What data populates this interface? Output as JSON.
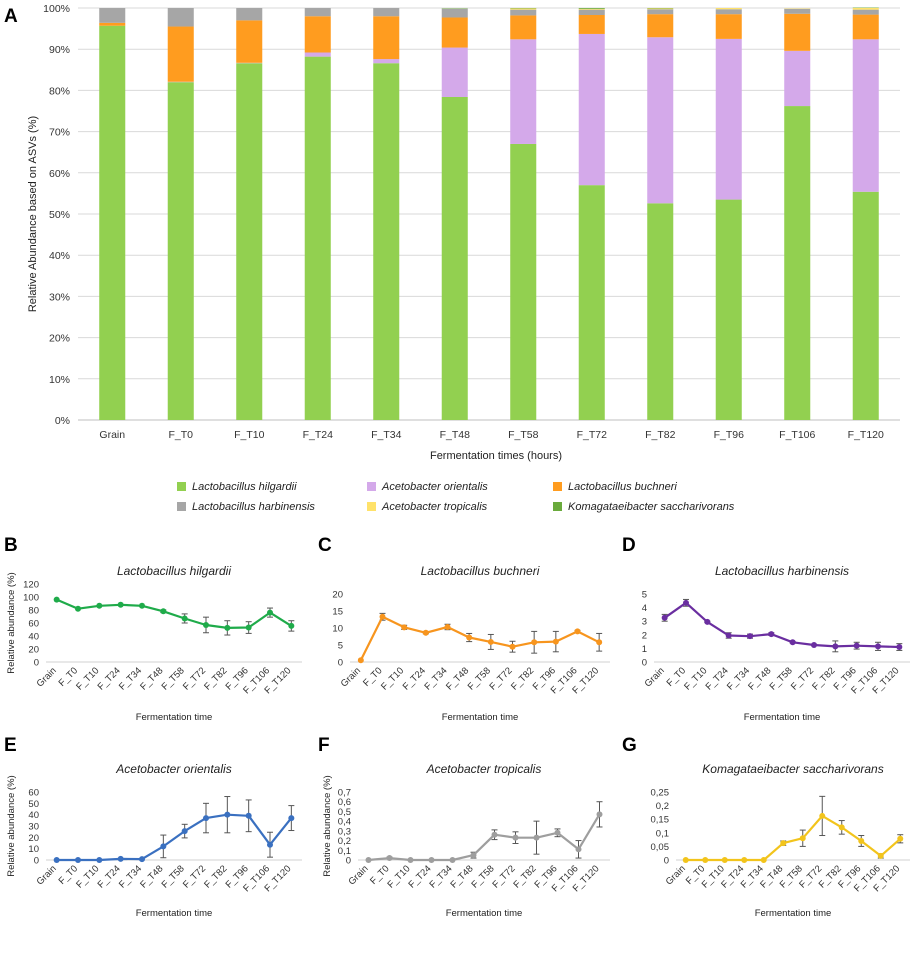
{
  "panels": {
    "A": "A",
    "B": "B",
    "C": "C",
    "D": "D",
    "E": "E",
    "F": "F",
    "G": "G"
  },
  "colors": {
    "hilgardii": "#92d050",
    "orientalis": "#d4a9ea",
    "buchneri": "#ff9c1f",
    "harbinensis": "#a6a6a6",
    "tropicalis": "#ffe26a",
    "komagataeibacter": "#6aaa3c"
  },
  "chart_data": [
    {
      "id": "A",
      "type": "bar",
      "stacked": true,
      "title": "",
      "xlabel": "Fermentation times (hours)",
      "ylabel": "Relative Abundance based on ASVs  (%)",
      "ylim": [
        0,
        100
      ],
      "yticks": [
        "0%",
        "10%",
        "20%",
        "30%",
        "40%",
        "50%",
        "60%",
        "70%",
        "80%",
        "90%",
        "100%"
      ],
      "categories": [
        "Grain",
        "F_T0",
        "F_T10",
        "F_T24",
        "F_T34",
        "F_T48",
        "F_T58",
        "F_T72",
        "F_T82",
        "F_T96",
        "F_T106",
        "F_T120"
      ],
      "series": [
        {
          "name": "Lactobacillus hilgardii",
          "key": "hilgardii",
          "values": [
            95.7,
            82,
            86.6,
            88.2,
            86.6,
            78.4,
            67,
            57,
            52.6,
            53.5,
            76.2,
            55.4
          ]
        },
        {
          "name": "Acetobacter orientalis",
          "key": "orientalis",
          "values": [
            0,
            0.1,
            0.1,
            1,
            1,
            12,
            25.4,
            36.7,
            40.3,
            39,
            13.4,
            37
          ]
        },
        {
          "name": "Lactobacillus buchneri",
          "key": "buchneri",
          "values": [
            0.7,
            13.4,
            10.3,
            8.8,
            10.4,
            7.3,
            5.8,
            4.6,
            5.6,
            6,
            9,
            6
          ]
        },
        {
          "name": "Lactobacillus harbinensis",
          "key": "harbinensis",
          "values": [
            3.6,
            4.5,
            3,
            2,
            2,
            2.1,
            1.4,
            1.3,
            1.2,
            1.2,
            1.2,
            1.2
          ]
        },
        {
          "name": "Acetobacter tropicalis",
          "key": "tropicalis",
          "values": [
            0,
            0,
            0,
            0,
            0,
            0,
            0.3,
            0.2,
            0.2,
            0.3,
            0.1,
            0.4
          ]
        },
        {
          "name": "Komagataeibacter saccharivorans",
          "key": "komagataeibacter",
          "values": [
            0,
            0,
            0,
            0,
            0,
            0.1,
            0.1,
            0.2,
            0.1,
            0,
            0,
            0.1
          ]
        }
      ],
      "legend_position": "bottom"
    },
    {
      "id": "B",
      "type": "line",
      "title": "Lactobacillus hilgardii",
      "color": "#1fab4a",
      "ylabel": "Relative abundance (%)",
      "xlabel": "Fermentation time",
      "ylim": [
        0,
        120
      ],
      "yticks": [
        "0",
        "20",
        "40",
        "60",
        "80",
        "100",
        "120"
      ],
      "ytick_values": [
        0,
        20,
        40,
        60,
        80,
        100,
        120
      ],
      "categories": [
        "Grain",
        "F_T0",
        "F_T10",
        "F_T24",
        "F_T34",
        "F_T48",
        "F_T58",
        "F_T72",
        "F_T82",
        "F_T96",
        "F_T106",
        "F_T120"
      ],
      "values": [
        96,
        82,
        86.5,
        88,
        86.5,
        78,
        67,
        57,
        52.5,
        53,
        76,
        55.5
      ],
      "errors": [
        0,
        0,
        0,
        0,
        0,
        2,
        7,
        12,
        11,
        9,
        7,
        8
      ]
    },
    {
      "id": "C",
      "type": "line",
      "title": "Lactobacillus buchneri",
      "color": "#f7951e",
      "ylabel": "",
      "xlabel": "Fermentation time",
      "ylim": [
        0,
        20
      ],
      "yticks": [
        "0",
        "5",
        "10",
        "15",
        "20"
      ],
      "ytick_values": [
        0,
        5,
        10,
        15,
        20
      ],
      "categories": [
        "Grain",
        "F_T0",
        "F_T10",
        "F_T24",
        "F_T34",
        "F_T48",
        "F_T58",
        "F_T72",
        "F_T82",
        "F_T96",
        "F_T106",
        "F_T120"
      ],
      "values": [
        0.5,
        13.3,
        10.2,
        8.6,
        10.3,
        7.2,
        5.9,
        4.5,
        5.8,
        6,
        9,
        5.8
      ],
      "errors": [
        0,
        1,
        0.6,
        0.3,
        0.8,
        1.2,
        2.2,
        1.6,
        3.2,
        3,
        0.3,
        2.6
      ]
    },
    {
      "id": "D",
      "type": "line",
      "title": "Lactobacillus harbinensis",
      "color": "#6a2ea0",
      "ylabel": "",
      "xlabel": "Fermentation time",
      "ylim": [
        0,
        5
      ],
      "yticks": [
        "0",
        "1",
        "2",
        "3",
        "4",
        "5"
      ],
      "ytick_values": [
        0,
        1,
        2,
        3,
        4,
        5
      ],
      "categories": [
        "Grain",
        "F_T0",
        "F_T10",
        "F_T24",
        "F_T34",
        "F_T48",
        "F_T58",
        "F_T72",
        "F_T82",
        "F_T96",
        "F_T106",
        "F_T120"
      ],
      "values": [
        3.25,
        4.35,
        2.95,
        1.95,
        1.9,
        2.05,
        1.45,
        1.25,
        1.15,
        1.2,
        1.15,
        1.1
      ],
      "errors": [
        0.25,
        0.25,
        0.05,
        0.2,
        0.15,
        0.1,
        0.05,
        0.05,
        0.4,
        0.25,
        0.3,
        0.25
      ]
    },
    {
      "id": "E",
      "type": "line",
      "title": "Acetobacter orientalis",
      "color": "#3a70c0",
      "ylabel": "Relative abundance (%)",
      "xlabel": "Fermentation time",
      "ylim": [
        0,
        60
      ],
      "yticks": [
        "0",
        "10",
        "20",
        "30",
        "40",
        "50",
        "60"
      ],
      "ytick_values": [
        0,
        10,
        20,
        30,
        40,
        50,
        60
      ],
      "categories": [
        "Grain",
        "F_T0",
        "F_T10",
        "F_T24",
        "F_T34",
        "F_T48",
        "F_T58",
        "F_T72",
        "F_T82",
        "F_T96",
        "F_T106",
        "F_T120"
      ],
      "values": [
        0,
        0,
        0,
        1,
        0.8,
        12,
        25.5,
        37,
        40,
        39,
        13.5,
        37
      ],
      "errors": [
        0,
        0,
        0,
        0,
        0,
        10,
        6,
        13,
        16,
        14,
        11,
        11
      ]
    },
    {
      "id": "F",
      "type": "line",
      "title": "Acetobacter tropicalis",
      "color": "#9e9e9e",
      "ylabel": "Relative abundance (%)",
      "xlabel": "Fermentation time",
      "ylim": [
        0,
        0.7
      ],
      "yticks": [
        "0",
        "0,1",
        "0,2",
        "0,3",
        "0,4",
        "0,5",
        "0,6",
        "0,7"
      ],
      "ytick_values": [
        0,
        0.1,
        0.2,
        0.3,
        0.4,
        0.5,
        0.6,
        0.7
      ],
      "categories": [
        "Grain",
        "F_T0",
        "F_T10",
        "F_T24",
        "F_T34",
        "F_T48",
        "F_T58",
        "F_T72",
        "F_T82",
        "F_T96",
        "F_T106",
        "F_T120"
      ],
      "values": [
        0,
        0.02,
        0,
        0,
        0,
        0.05,
        0.26,
        0.23,
        0.23,
        0.28,
        0.11,
        0.47
      ],
      "errors": [
        0,
        0.01,
        0,
        0,
        0,
        0.03,
        0.05,
        0.06,
        0.17,
        0.04,
        0.09,
        0.13
      ]
    },
    {
      "id": "G",
      "type": "line",
      "title": "Komagataeibacter saccharivorans",
      "color": "#f2c41c",
      "ylabel": "",
      "xlabel": "Fermentation time",
      "ylim": [
        0,
        0.25
      ],
      "yticks": [
        "0",
        "0,05",
        "0,1",
        "0,15",
        "0,2",
        "0,25"
      ],
      "ytick_values": [
        0,
        0.05,
        0.1,
        0.15,
        0.2,
        0.25
      ],
      "categories": [
        "Grain",
        "F_T0",
        "F_T10",
        "F_T24",
        "F_T34",
        "F_T48",
        "F_T58",
        "F_T72",
        "F_T82",
        "F_T96",
        "F_T106",
        "F_T120"
      ],
      "values": [
        0,
        0,
        0,
        0,
        0,
        0.062,
        0.08,
        0.162,
        0.12,
        0.07,
        0.015,
        0.078
      ],
      "errors": [
        0,
        0,
        0,
        0,
        0,
        0.008,
        0.03,
        0.072,
        0.025,
        0.02,
        0.008,
        0.015
      ]
    }
  ]
}
